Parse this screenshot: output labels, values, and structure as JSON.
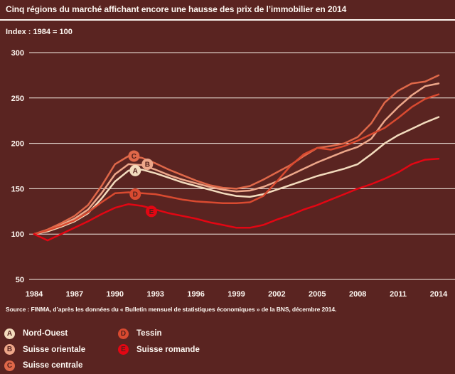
{
  "title": "Cinq régions du marché affichant encore une hausse des prix de l’immobilier en 2014",
  "subtitle": "Index : 1984 = 100",
  "source": "Source : FINMA, d’après les données du « Bulletin mensuel de statistiques économiques » de la BNS, décembre 2014.",
  "colors": {
    "background": "#5a2421",
    "grid": "#f8f0e7",
    "text": "#fdf7f1",
    "marker_letter": "#54201b"
  },
  "chart_data": {
    "type": "line",
    "title": "Cinq régions du marché affichant encore une hausse des prix de l’immobilier en 2014",
    "xlabel": "",
    "ylabel": "Index : 1984 = 100",
    "xlim": [
      1984,
      2014
    ],
    "ylim": [
      50,
      300
    ],
    "grid": true,
    "legend_position": "bottom-left-two-columns",
    "x": [
      1984,
      1985,
      1986,
      1987,
      1988,
      1989,
      1990,
      1991,
      1992,
      1993,
      1994,
      1995,
      1996,
      1997,
      1998,
      1999,
      2000,
      2001,
      2002,
      2003,
      2004,
      2005,
      2006,
      2007,
      2008,
      2009,
      2010,
      2011,
      2012,
      2013,
      2014
    ],
    "x_ticks": [
      1984,
      1987,
      1990,
      1993,
      1996,
      1999,
      2002,
      2005,
      2008,
      2011,
      2014
    ],
    "y_ticks": [
      300,
      250,
      200,
      150,
      100,
      50
    ],
    "series": [
      {
        "letter": "A",
        "name": "Nord-Ouest",
        "color": "#f3dcbe",
        "values": [
          100,
          103,
          108,
          114,
          123,
          139,
          158,
          170,
          171,
          167,
          162,
          157,
          153,
          149,
          145,
          142,
          141,
          144,
          149,
          154,
          159,
          164,
          168,
          172,
          177,
          188,
          200,
          209,
          216,
          223,
          229
        ],
        "marker": {
          "year": 1991.5,
          "value": 170
        }
      },
      {
        "letter": "B",
        "name": "Suisse orientale",
        "color": "#eda78a",
        "values": [
          100,
          104,
          110,
          117,
          127,
          145,
          166,
          177,
          176,
          171,
          165,
          160,
          156,
          152,
          149,
          147,
          148,
          152,
          158,
          165,
          172,
          179,
          185,
          191,
          196,
          205,
          225,
          240,
          253,
          263,
          266
        ],
        "marker": {
          "year": 1992.4,
          "value": 177
        }
      },
      {
        "letter": "C",
        "name": "Suisse centrale",
        "color": "#df6849",
        "values": [
          100,
          105,
          112,
          120,
          132,
          153,
          177,
          186,
          184,
          178,
          171,
          165,
          159,
          154,
          151,
          150,
          153,
          160,
          168,
          176,
          186,
          195,
          197,
          200,
          207,
          222,
          245,
          258,
          266,
          268,
          275
        ],
        "marker": {
          "year": 1991.4,
          "value": 186
        }
      },
      {
        "letter": "D",
        "name": "Tessin",
        "color": "#d94a30",
        "values": [
          100,
          104,
          109,
          115,
          124,
          135,
          145,
          146,
          145,
          144,
          141,
          138,
          136,
          135,
          134,
          134,
          135,
          142,
          158,
          175,
          188,
          195,
          193,
          197,
          203,
          210,
          217,
          228,
          240,
          249,
          254
        ],
        "marker": {
          "year": 1991.5,
          "value": 144
        }
      },
      {
        "letter": "E",
        "name": "Suisse romande",
        "color": "#e30613",
        "values": [
          100,
          93,
          100,
          107,
          114,
          122,
          129,
          133,
          131,
          127,
          123,
          120,
          117,
          113,
          110,
          107,
          107,
          110,
          116,
          121,
          127,
          132,
          138,
          144,
          150,
          155,
          161,
          168,
          177,
          182,
          183
        ],
        "marker": {
          "year": 1992.7,
          "value": 125
        }
      }
    ]
  }
}
